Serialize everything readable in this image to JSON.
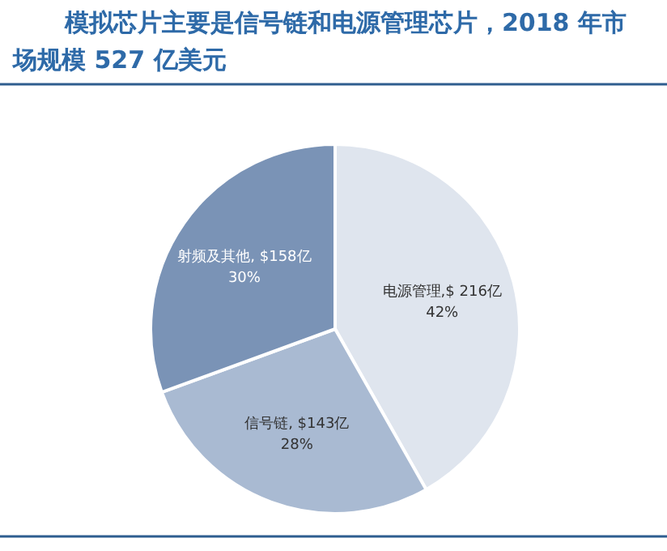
{
  "chart_data": {
    "type": "pie",
    "title": "模拟芯片主要是信号链和电源管理芯片，2018 年市场规模 527 亿美元",
    "categories": [
      "电源管理",
      "信号链",
      "射频及其他"
    ],
    "values": [
      216,
      143,
      158
    ],
    "colors": [
      "#dfe5ee",
      "#a9bad2",
      "#7a93b6"
    ],
    "value_labels": [
      ",$ 216亿\n42%",
      ", $143亿\n28%",
      ", $158亿\n30%"
    ]
  }
}
